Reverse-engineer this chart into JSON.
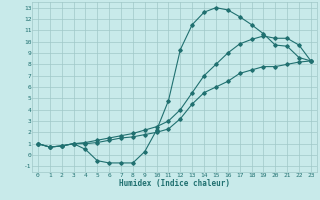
{
  "bg_color": "#c8eaea",
  "grid_color": "#a0c8c8",
  "line_color": "#207070",
  "xlabel": "Humidex (Indice chaleur)",
  "xlim": [
    -0.5,
    23.5
  ],
  "ylim": [
    -1.5,
    13.5
  ],
  "xticks": [
    0,
    1,
    2,
    3,
    4,
    5,
    6,
    7,
    8,
    9,
    10,
    11,
    12,
    13,
    14,
    15,
    16,
    17,
    18,
    19,
    20,
    21,
    22,
    23
  ],
  "yticks": [
    -1,
    0,
    1,
    2,
    3,
    4,
    5,
    6,
    7,
    8,
    9,
    10,
    11,
    12,
    13
  ],
  "line1_x": [
    0,
    1,
    2,
    3,
    4,
    5,
    6,
    7,
    8,
    9,
    10,
    11,
    12,
    13,
    14,
    15,
    16,
    17,
    18,
    19,
    20,
    21,
    22,
    23
  ],
  "line1_y": [
    1,
    0.7,
    0.8,
    1.0,
    0.5,
    -0.5,
    -0.7,
    -0.7,
    -0.7,
    0.3,
    2.2,
    4.8,
    9.3,
    11.5,
    12.6,
    13.0,
    12.8,
    12.2,
    11.5,
    10.7,
    9.7,
    9.6,
    8.6,
    8.3
  ],
  "line2_x": [
    0,
    1,
    2,
    3,
    4,
    5,
    6,
    7,
    8,
    9,
    10,
    11,
    12,
    13,
    14,
    15,
    16,
    17,
    18,
    19,
    20,
    21,
    22,
    23
  ],
  "line2_y": [
    1,
    0.7,
    0.8,
    1.0,
    1.0,
    1.1,
    1.3,
    1.5,
    1.6,
    1.8,
    2.0,
    2.3,
    3.2,
    4.5,
    5.5,
    6.0,
    6.5,
    7.2,
    7.5,
    7.8,
    7.8,
    8.0,
    8.2,
    8.3
  ],
  "line3_x": [
    0,
    1,
    2,
    3,
    4,
    5,
    6,
    7,
    8,
    9,
    10,
    11,
    12,
    13,
    14,
    15,
    16,
    17,
    18,
    19,
    20,
    21,
    22,
    23
  ],
  "line3_y": [
    1,
    0.7,
    0.8,
    1.0,
    1.1,
    1.3,
    1.5,
    1.7,
    1.9,
    2.2,
    2.5,
    3.0,
    4.0,
    5.5,
    7.0,
    8.0,
    9.0,
    9.8,
    10.2,
    10.5,
    10.3,
    10.3,
    9.7,
    8.3
  ]
}
